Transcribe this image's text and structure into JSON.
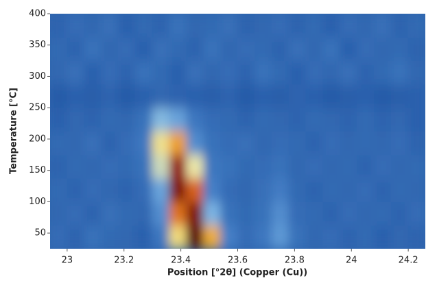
{
  "chart_data": {
    "type": "heatmap",
    "x_label": "Position [°2θ] (Copper (Cu))",
    "y_label": "Temperature [°C]",
    "xlim": [
      22.94,
      24.26
    ],
    "ylim": [
      25,
      400
    ],
    "xticks": [
      23,
      23.2,
      23.4,
      23.6,
      23.8,
      24,
      24.2
    ],
    "yticks": [
      50,
      100,
      150,
      200,
      250,
      300,
      350,
      400
    ],
    "x": [
      22.97,
      23.03,
      23.09,
      23.15,
      23.21,
      23.27,
      23.33,
      23.39,
      23.45,
      23.51,
      23.57,
      23.63,
      23.69,
      23.75,
      23.81,
      23.87,
      23.93,
      23.99,
      24.05,
      24.11,
      24.17,
      24.23
    ],
    "y": [
      43.75,
      81.25,
      118.75,
      156.25,
      193.75,
      231.25,
      268.75,
      306.25,
      343.75,
      381.25
    ],
    "z": [
      [
        28,
        25,
        30,
        27,
        26,
        24,
        32,
        60,
        100,
        70,
        35,
        28,
        32,
        40,
        30,
        26,
        28,
        25,
        27,
        24,
        26,
        25
      ],
      [
        26,
        28,
        25,
        29,
        27,
        26,
        38,
        78,
        95,
        45,
        30,
        27,
        30,
        38,
        28,
        27,
        25,
        28,
        26,
        27,
        25,
        28
      ],
      [
        27,
        25,
        28,
        26,
        25,
        28,
        42,
        95,
        80,
        35,
        28,
        26,
        29,
        34,
        27,
        25,
        27,
        26,
        28,
        25,
        27,
        26
      ],
      [
        25,
        27,
        26,
        28,
        27,
        30,
        52,
        92,
        55,
        32,
        30,
        27,
        28,
        30,
        26,
        28,
        26,
        27,
        25,
        28,
        26,
        27
      ],
      [
        27,
        26,
        29,
        25,
        28,
        32,
        58,
        72,
        38,
        30,
        28,
        29,
        26,
        28,
        27,
        25,
        28,
        26,
        27,
        26,
        28,
        25
      ],
      [
        24,
        26,
        25,
        27,
        26,
        30,
        46,
        42,
        32,
        28,
        27,
        25,
        27,
        26,
        25,
        27,
        26,
        25,
        27,
        25,
        26,
        24
      ],
      [
        22,
        24,
        23,
        25,
        22,
        24,
        26,
        25,
        24,
        23,
        25,
        22,
        24,
        23,
        25,
        24,
        22,
        23,
        24,
        22,
        23,
        24
      ],
      [
        26,
        29,
        24,
        28,
        25,
        30,
        27,
        24,
        29,
        26,
        28,
        25,
        30,
        27,
        24,
        28,
        26,
        29,
        25,
        27,
        30,
        26
      ],
      [
        27,
        25,
        30,
        26,
        28,
        24,
        29,
        27,
        25,
        30,
        26,
        28,
        27,
        25,
        29,
        26,
        30,
        24,
        28,
        26,
        27,
        25
      ],
      [
        25,
        28,
        26,
        29,
        24,
        27,
        25,
        30,
        26,
        27,
        29,
        25,
        26,
        28,
        25,
        27,
        24,
        28,
        26,
        29,
        25,
        27
      ]
    ]
  }
}
